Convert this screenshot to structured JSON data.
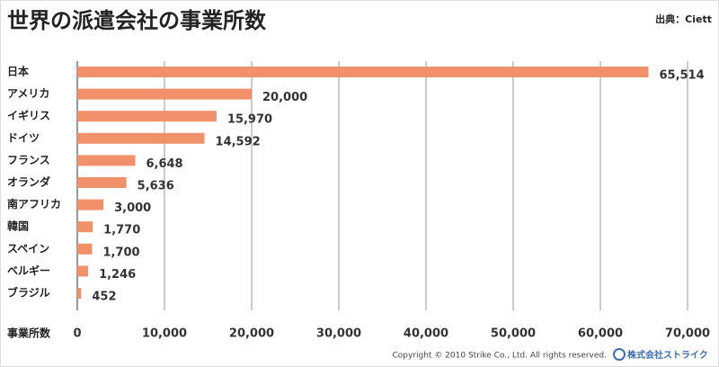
{
  "chart_data": {
    "type": "bar",
    "orientation": "horizontal",
    "title": "世界の派遣会社の事業所数",
    "source": "出典：Ciett",
    "xlabel": "事業所数",
    "categories": [
      "日本",
      "アメリカ",
      "イギリス",
      "ドイツ",
      "フランス",
      "オランダ",
      "南アフリカ",
      "韓国",
      "スペイン",
      "ベルギー",
      "ブラジル"
    ],
    "values": [
      65514,
      20000,
      15970,
      14592,
      6648,
      5636,
      3000,
      1770,
      1700,
      1246,
      452
    ],
    "value_labels": [
      "65,514",
      "20,000",
      "15,970",
      "14,592",
      "6,648",
      "5,636",
      "3,000",
      "1,770",
      "1,700",
      "1,246",
      "452"
    ],
    "color": "#f0916b",
    "xlim": [
      0,
      70000
    ],
    "xticks": [
      0,
      {
        "value": 10000,
        "label": "10,000"
      },
      {
        "value": 20000,
        "label": "20,000"
      },
      {
        "value": 30000,
        "label": "30,000"
      },
      {
        "value": 40000,
        "label": "40,000"
      },
      {
        "value": 50000,
        "label": "50,000"
      },
      {
        "value": 60000,
        "label": "60,000"
      },
      {
        "value": 70000,
        "label": "70,000"
      }
    ],
    "grid": true
  },
  "footer": {
    "copyright": "Copyright © 2010 Strike Co., Ltd. All rights reserved.",
    "logo": "株式会社ストライク"
  }
}
